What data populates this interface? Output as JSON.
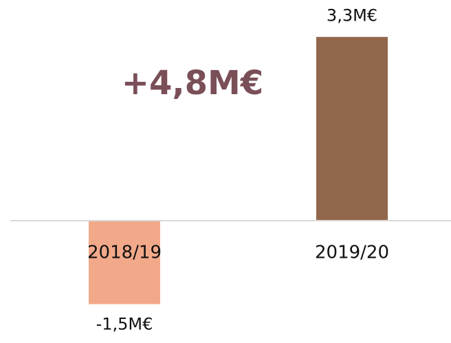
{
  "chart_data": {
    "type": "bar",
    "categories": [
      "2018/19",
      "2019/20"
    ],
    "values": [
      -1.5,
      3.3
    ],
    "value_labels": [
      "-1,5M€",
      "3,3M€"
    ],
    "colors": [
      "#f2a98a",
      "#93674c"
    ],
    "annotation": "+4,8M€",
    "ylim": [
      -2,
      3.5
    ]
  }
}
